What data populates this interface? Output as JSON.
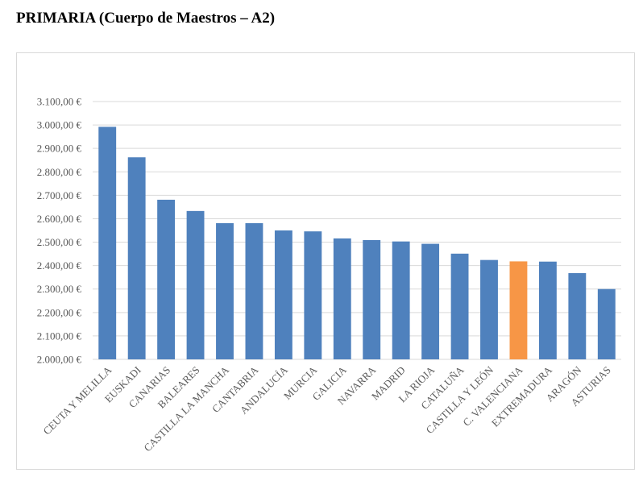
{
  "title": "PRIMARIA (Cuerpo de Maestros – A2)",
  "colors": {
    "bar": "#4f81bd",
    "highlight": "#f79646",
    "grid": "#d9d9d9",
    "text": "#595959"
  },
  "chart_data": {
    "type": "bar",
    "categories": [
      "CEUTA Y MELILLA",
      "EUSKADI",
      "CANARIAS",
      "BALEARES",
      "CASTILLA LA MANCHA",
      "CANTABRIA",
      "ANDALUCÍA",
      "MURCIA",
      "GALICIA",
      "NAVARRA",
      "MADRID",
      "LA RIOJA",
      "CATALUÑA",
      "CASTILLA Y LEÓN",
      "C. VALENCIANA",
      "EXTREMADURA",
      "ARAGÓN",
      "ASTURIAS"
    ],
    "values": [
      2992,
      2862,
      2681,
      2633,
      2581,
      2581,
      2550,
      2546,
      2516,
      2509,
      2503,
      2493,
      2451,
      2424,
      2418,
      2417,
      2368,
      2300
    ],
    "highlight_category": "C. VALENCIANA",
    "ylim": [
      2000,
      3100
    ],
    "yticks": [
      2000,
      2100,
      2200,
      2300,
      2400,
      2500,
      2600,
      2700,
      2800,
      2900,
      3000,
      3100
    ],
    "ytick_labels": [
      "2.000,00 €",
      "2.100,00 €",
      "2.200,00 €",
      "2.300,00 €",
      "2.400,00 €",
      "2.500,00 €",
      "2.600,00 €",
      "2.700,00 €",
      "2.800,00 €",
      "2.900,00 €",
      "3.000,00 €",
      "3.100,00 €"
    ],
    "grid": true,
    "legend": false
  }
}
